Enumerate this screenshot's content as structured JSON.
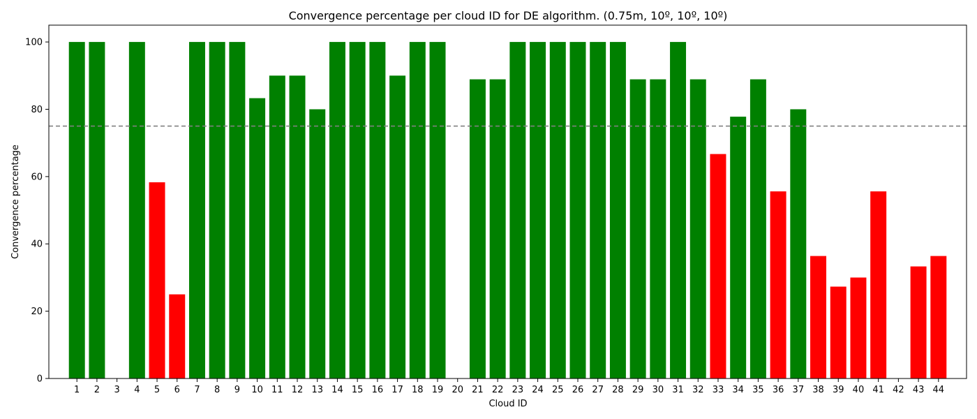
{
  "chart_data": {
    "type": "bar",
    "title": "Convergence percentage per cloud ID for DE algorithm. (0.75m, 10º, 10º, 10º)",
    "xlabel": "Cloud ID",
    "ylabel": "Convergence percentage",
    "ylim": [
      0,
      105
    ],
    "yticks": [
      0,
      20,
      40,
      60,
      80,
      100
    ],
    "threshold": 75,
    "threshold_color": "#808080",
    "colors": {
      "above": "#008000",
      "below": "#ff0000"
    },
    "grid": false,
    "categories": [
      "1",
      "2",
      "3",
      "4",
      "5",
      "6",
      "7",
      "8",
      "9",
      "10",
      "11",
      "12",
      "13",
      "14",
      "15",
      "16",
      "17",
      "18",
      "19",
      "20",
      "21",
      "22",
      "23",
      "24",
      "25",
      "26",
      "27",
      "28",
      "29",
      "30",
      "31",
      "32",
      "33",
      "34",
      "35",
      "36",
      "37",
      "38",
      "39",
      "40",
      "41",
      "42",
      "43",
      "44"
    ],
    "values": [
      100,
      100,
      0,
      100,
      58.3,
      25,
      100,
      100,
      100,
      83.3,
      90,
      90,
      80,
      100,
      100,
      100,
      90,
      100,
      100,
      0,
      88.9,
      88.9,
      100,
      100,
      100,
      100,
      100,
      100,
      88.9,
      88.9,
      100,
      88.9,
      66.7,
      77.8,
      88.9,
      55.6,
      80,
      36.4,
      27.3,
      30,
      55.6,
      0,
      33.3,
      36.4
    ]
  }
}
